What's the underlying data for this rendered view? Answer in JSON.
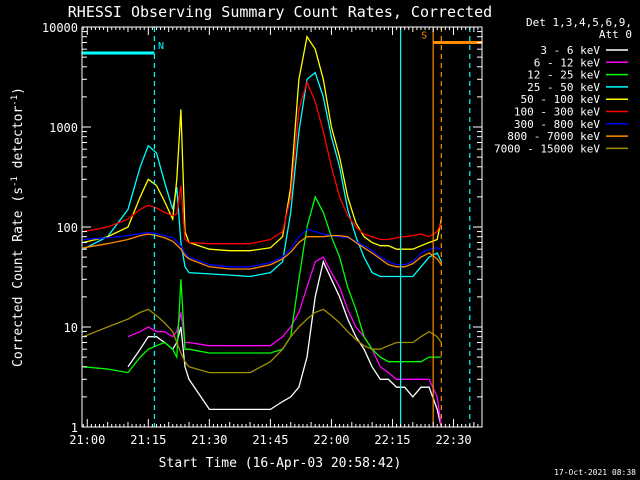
{
  "chart_data": {
    "type": "line",
    "title": "RHESSI Observing Summary Count Rates, Corrected",
    "xlabel": "Start Time (16-Apr-03 20:58:42)",
    "ylabel_main": "Corrected Count Rate (s",
    "ylabel_sup1": "-1",
    "ylabel_mid": " detector",
    "ylabel_sup2": "-1",
    "ylabel_end": ")",
    "y_scale": "log",
    "ylim": [
      1,
      10000
    ],
    "xlim": [
      "20:58:42",
      "22:37:00"
    ],
    "x_ticks": [
      "21:00",
      "21:15",
      "21:30",
      "21:45",
      "22:00",
      "22:15",
      "22:30"
    ],
    "y_ticks": [
      "1",
      "10",
      "100",
      "1000",
      "10000"
    ],
    "legend_header": [
      "Det 1,3,4,5,6,9,",
      "Att 0"
    ],
    "legend_position": "right",
    "footer_date": "17-Oct-2021 08:38",
    "flags": [
      {
        "label": "N",
        "color": "#00ffff",
        "start": "20:58:42",
        "end": "21:16:30",
        "level": 5500
      },
      {
        "label": "S",
        "color": "#ff8c00",
        "start": "22:25:00",
        "end": "22:37:00",
        "level": 7000
      }
    ],
    "vlines": [
      {
        "time": "21:16:30",
        "color": "#00ffff",
        "dashed": true
      },
      {
        "time": "22:17:00",
        "color": "#00ffff",
        "dashed": false
      },
      {
        "time": "22:25:00",
        "color": "#ff8c00",
        "dashed": false
      },
      {
        "time": "22:27:00",
        "color": "#ff8c00",
        "dashed": true
      },
      {
        "time": "22:34:00",
        "color": "#00ffff",
        "dashed": true
      }
    ],
    "x": [
      "20:59",
      "21:05",
      "21:10",
      "21:13",
      "21:15",
      "21:17",
      "21:19",
      "21:21",
      "21:22",
      "21:23",
      "21:24",
      "21:25",
      "21:30",
      "21:35",
      "21:40",
      "21:45",
      "21:48",
      "21:50",
      "21:52",
      "21:54",
      "21:56",
      "21:58",
      "22:00",
      "22:02",
      "22:04",
      "22:06",
      "22:08",
      "22:10",
      "22:12",
      "22:14",
      "22:16",
      "22:18",
      "22:20",
      "22:22",
      "22:24",
      "22:26",
      "22:27"
    ],
    "series": [
      {
        "name": "3 - 6 keV",
        "color": "#ffffff",
        "values": [
          null,
          null,
          4,
          6,
          8,
          8,
          7,
          6,
          7,
          10,
          4,
          3,
          1.5,
          1.5,
          1.5,
          1.5,
          1.8,
          2,
          2.5,
          5,
          20,
          45,
          30,
          20,
          12,
          8,
          6,
          4,
          3,
          3,
          2.5,
          2.5,
          2,
          2.5,
          2.5,
          1.5,
          1
        ]
      },
      {
        "name": "6 - 12 keV",
        "color": "#ff00ff",
        "values": [
          null,
          null,
          8,
          9,
          10,
          9,
          9,
          8,
          9,
          14,
          7,
          7,
          6.5,
          6.5,
          6.5,
          6.5,
          8,
          10,
          14,
          25,
          45,
          50,
          35,
          25,
          15,
          10,
          8,
          6,
          4,
          3.5,
          3,
          3,
          3,
          3,
          3,
          2,
          1
        ]
      },
      {
        "name": "12 - 25 keV",
        "color": "#00ff00",
        "values": [
          4,
          3.8,
          3.5,
          5,
          6,
          6.5,
          7,
          6,
          5,
          30,
          6,
          6,
          5.5,
          5.5,
          5.5,
          5.5,
          6,
          8,
          30,
          100,
          200,
          140,
          80,
          50,
          25,
          15,
          8,
          6,
          5,
          4.5,
          4.5,
          4.5,
          4.5,
          4.5,
          5,
          5,
          5
        ]
      },
      {
        "name": "25 - 50 keV",
        "color": "#00ffff",
        "values": [
          60,
          80,
          150,
          400,
          650,
          550,
          280,
          150,
          250,
          70,
          40,
          35,
          34,
          33,
          32,
          35,
          45,
          140,
          900,
          3000,
          3500,
          2000,
          800,
          400,
          150,
          80,
          50,
          35,
          32,
          32,
          32,
          32,
          32,
          40,
          50,
          55,
          45
        ]
      },
      {
        "name": "50 - 100 keV",
        "color": "#ffff00",
        "values": [
          70,
          80,
          100,
          200,
          300,
          260,
          180,
          120,
          300,
          1500,
          90,
          70,
          60,
          58,
          58,
          62,
          80,
          250,
          3000,
          8000,
          6000,
          3000,
          1000,
          500,
          200,
          110,
          80,
          70,
          65,
          65,
          60,
          60,
          60,
          65,
          70,
          75,
          120
        ]
      },
      {
        "name": "100 - 300 keV",
        "color": "#ff0000",
        "values": [
          90,
          100,
          120,
          150,
          165,
          155,
          140,
          130,
          135,
          260,
          75,
          70,
          68,
          68,
          68,
          75,
          90,
          200,
          1500,
          2800,
          1800,
          900,
          400,
          200,
          130,
          100,
          85,
          80,
          75,
          75,
          78,
          80,
          82,
          85,
          80,
          90,
          110
        ]
      },
      {
        "name": "300 - 800 keV",
        "color": "#0000ff",
        "values": [
          75,
          78,
          82,
          86,
          88,
          86,
          82,
          78,
          72,
          65,
          55,
          50,
          42,
          40,
          40,
          44,
          50,
          60,
          80,
          95,
          90,
          85,
          82,
          80,
          78,
          72,
          65,
          58,
          50,
          45,
          42,
          42,
          45,
          55,
          60,
          62,
          60
        ]
      },
      {
        "name": "800 - 7000 keV",
        "color": "#ff8c00",
        "values": [
          62,
          68,
          75,
          82,
          85,
          82,
          78,
          72,
          66,
          60,
          52,
          48,
          40,
          38,
          38,
          42,
          48,
          56,
          70,
          80,
          80,
          80,
          82,
          82,
          80,
          70,
          62,
          55,
          48,
          42,
          40,
          40,
          43,
          50,
          55,
          48,
          42
        ]
      },
      {
        "name": "7000 - 15000 keV",
        "color": "#a09000",
        "values": [
          8,
          10,
          12,
          14,
          15,
          13,
          11,
          9,
          7,
          5.5,
          4.5,
          4,
          3.5,
          3.5,
          3.5,
          4.5,
          6,
          8,
          10,
          12,
          14,
          15,
          13,
          11,
          9,
          7.5,
          6.5,
          6,
          6,
          6.5,
          7,
          7,
          7,
          8,
          9,
          8,
          7
        ]
      }
    ]
  }
}
